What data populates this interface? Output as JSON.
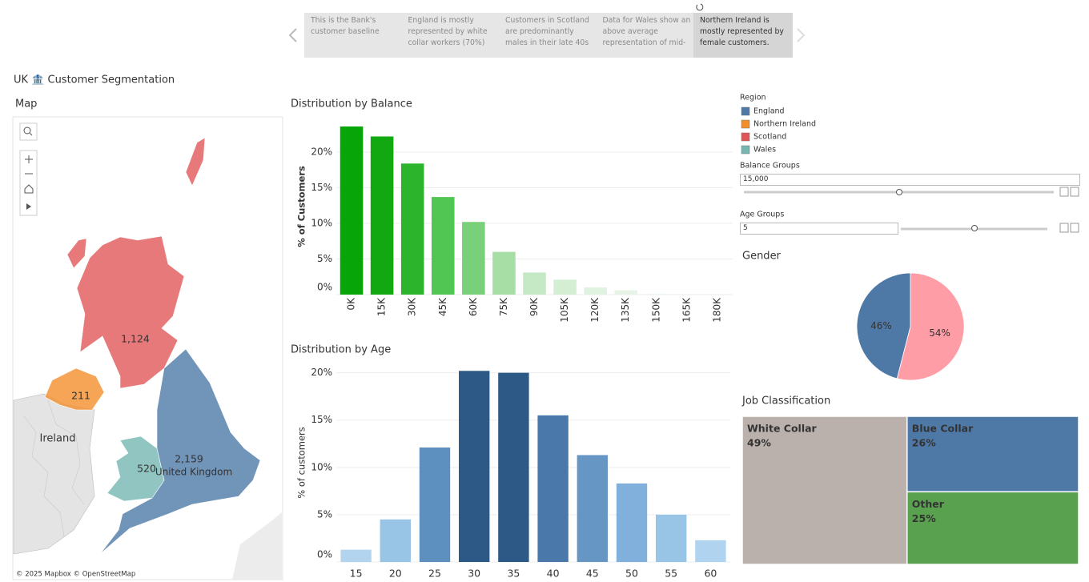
{
  "story_points": [
    "This is the Bank's customer baseline",
    "England is mostly represented by white collar workers (70%)",
    "Customers in Scotland are predominantly males in their late 40s",
    "Data for Wales show an above average representation of mid-",
    "Northern Ireland is mostly represented by female customers."
  ],
  "title": "UK 🏦 Customer Segmentation",
  "map": {
    "title": "Map",
    "place_labels": [
      "Ireland",
      "United Kingdom"
    ],
    "region_counts": [
      "2,159",
      "211",
      "1,124",
      "520"
    ],
    "credits": "© 2025 Mapbox © OpenStreetMap"
  },
  "legend": {
    "title": "Region",
    "items": [
      {
        "name": "England",
        "color": "#4e79a7"
      },
      {
        "name": "Northern Ireland",
        "color": "#f28e2b"
      },
      {
        "name": "Scotland",
        "color": "#e15759"
      },
      {
        "name": "Wales",
        "color": "#76b7b2"
      }
    ]
  },
  "filters": [
    {
      "label": "Balance Groups",
      "value": "15,000"
    },
    {
      "label": "Age Groups",
      "value": "5"
    }
  ],
  "chart_data": [
    {
      "type": "bar",
      "title": "Distribution by Balance",
      "y_label": "% of Customers",
      "categories": [
        "0K",
        "15K",
        "30K",
        "45K",
        "60K",
        "75K",
        "90K",
        "105K",
        "120K",
        "135K",
        "150K",
        "165K",
        "180K"
      ],
      "values": [
        23.6,
        22.2,
        18.4,
        13.7,
        10.2,
        6.0,
        3.1,
        2.1,
        1.0,
        0.6,
        0.1,
        0,
        0
      ],
      "colors": [
        "#07a507",
        "#12a812",
        "#2cb52c",
        "#52c652",
        "#78d178",
        "#a6dea6",
        "#c5e9c5",
        "#d4eed4",
        "#e0f2e0",
        "#e6f3e6",
        "#eaf5ea",
        "#eaf5ea",
        "#eaf5ea"
      ],
      "ylim": [
        0,
        24.5
      ],
      "yticks": [
        {
          "value": 0,
          "label": "0%"
        },
        {
          "value": 5,
          "label": "5%"
        },
        {
          "value": 10,
          "label": "10%"
        },
        {
          "value": 15,
          "label": "15%"
        },
        {
          "value": 20,
          "label": "20%"
        }
      ],
      "grid": true
    },
    {
      "type": "bar",
      "title": "Distribution by Age",
      "y_label": "% of customers",
      "categories": [
        "15",
        "20",
        "25",
        "30",
        "35",
        "40",
        "45",
        "50",
        "55",
        "60"
      ],
      "values": [
        1.3,
        4.5,
        12.1,
        20.2,
        20.0,
        15.5,
        11.3,
        8.3,
        5.0,
        2.3
      ],
      "colors": [
        "#b3d4ef",
        "#98c4e6",
        "#5d8fbf",
        "#2d5986",
        "#2d5986",
        "#4a78aa",
        "#6696c4",
        "#82b0dc",
        "#98c4e6",
        "#b0d3ef"
      ],
      "ylim": [
        0,
        20.9
      ],
      "yticks": [
        {
          "value": 0,
          "label": "0%"
        },
        {
          "value": 5,
          "label": "5%"
        },
        {
          "value": 10,
          "label": "10%"
        },
        {
          "value": 15,
          "label": "15%"
        },
        {
          "value": 20,
          "label": "20%"
        }
      ],
      "grid": true
    },
    {
      "type": "pie",
      "title": "Gender",
      "values": [
        46,
        54
      ],
      "value_labels": [
        "46%",
        "54%"
      ],
      "colors": [
        "#4e79a7",
        "#ff9da7"
      ]
    },
    {
      "type": "treemap",
      "title": "Job Classification",
      "categories": [
        "White Collar",
        "Blue Collar",
        "Other"
      ],
      "values": [
        49,
        26,
        25
      ],
      "value_labels": [
        "49%",
        "26%",
        "25%"
      ],
      "colors": [
        "#bab0ac",
        "#4e79a7",
        "#59a14f"
      ],
      "text_colors": [
        "#222222",
        "#ffffff",
        "#ffffff"
      ]
    }
  ]
}
